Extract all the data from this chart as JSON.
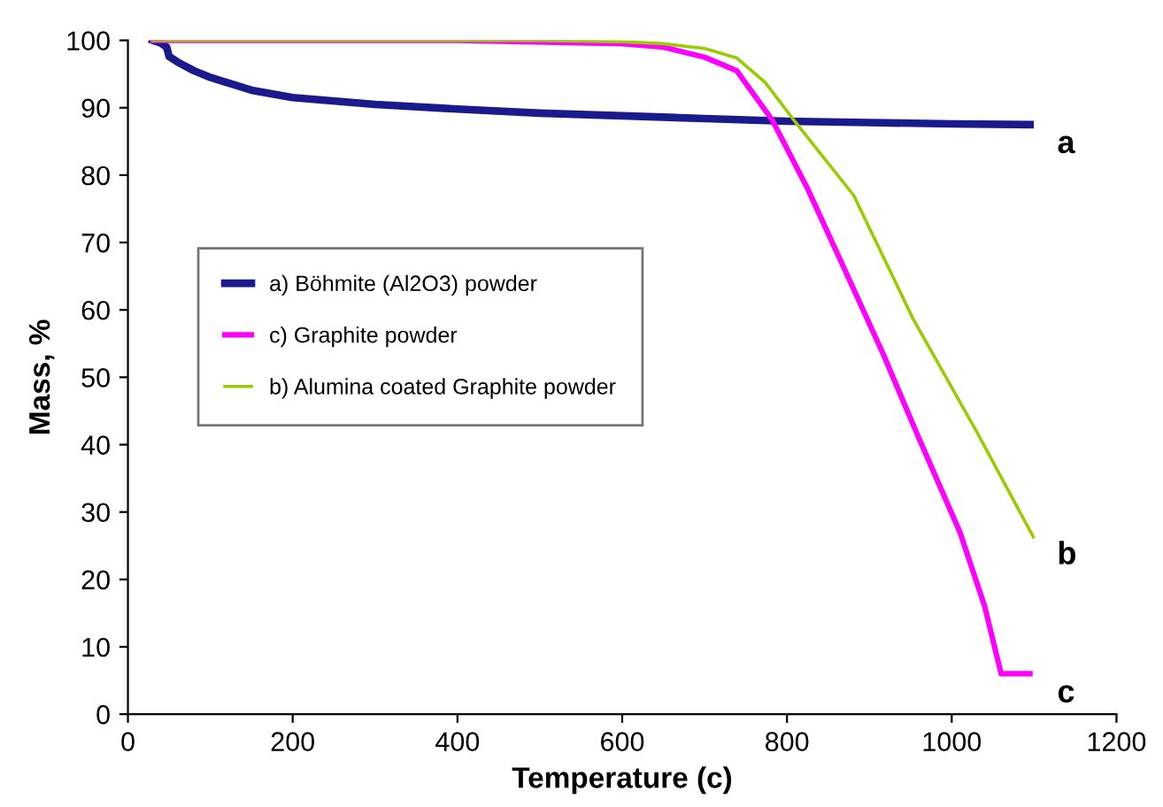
{
  "chart_data": {
    "type": "line",
    "xlabel": "Temperature (c)",
    "ylabel": "Mass, %",
    "xlim": [
      0,
      1200
    ],
    "ylim": [
      0,
      100
    ],
    "xticks": [
      0,
      200,
      400,
      600,
      800,
      1000,
      1200
    ],
    "yticks": [
      0,
      10,
      20,
      30,
      40,
      50,
      60,
      70,
      80,
      90,
      100
    ],
    "grid": false,
    "legend": "center left",
    "marker": "none",
    "line_style": "solid",
    "series": [
      {
        "name": "a) Böhmite (Al2O3) powder",
        "color": "#1a1a8c",
        "x": [
          30,
          40,
          47,
          50,
          60,
          80,
          100,
          150,
          200,
          300,
          400,
          500,
          600,
          700,
          800,
          900,
          1000,
          1095
        ],
        "values": [
          100,
          99.6,
          99,
          97.6,
          96.8,
          95.5,
          94.5,
          92.6,
          91.5,
          90.5,
          89.8,
          89.2,
          88.8,
          88.4,
          88,
          87.8,
          87.6,
          87.5
        ]
      },
      {
        "name": "c) Graphite powder",
        "color": "#ff00ff",
        "x": [
          30,
          400,
          600,
          650,
          700,
          739,
          782,
          825,
          870,
          917,
          960,
          1010,
          1040,
          1060,
          1095
        ],
        "values": [
          100,
          100,
          99.5,
          99,
          97.5,
          95.5,
          88.2,
          78,
          66,
          53.4,
          41,
          27,
          16,
          6,
          6
        ]
      },
      {
        "name": "b) Alumina coated Graphite powder",
        "color": "#99cc00",
        "x": [
          30,
          500,
          600,
          650,
          700,
          739,
          774,
          810,
          881,
          953,
          1030,
          1099
        ],
        "values": [
          100,
          100,
          99.8,
          99.5,
          98.8,
          97.4,
          93.7,
          87.9,
          77,
          58.7,
          42,
          26.3
        ]
      }
    ],
    "annotations": [
      "a",
      "b",
      "c"
    ]
  }
}
